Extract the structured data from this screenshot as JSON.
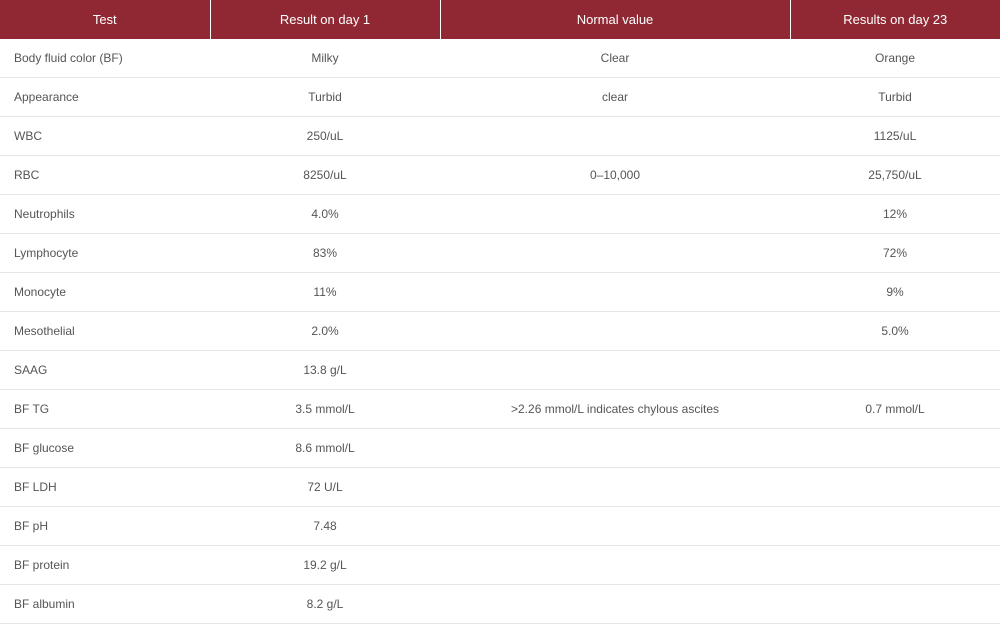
{
  "table": {
    "columns": [
      "Test",
      "Result on day 1",
      "Normal value",
      "Results on day 23"
    ],
    "rows": [
      [
        "Body fluid color (BF)",
        "Milky",
        "Clear",
        "Orange"
      ],
      [
        "Appearance",
        "Turbid",
        "clear",
        "Turbid"
      ],
      [
        "WBC",
        "250/uL",
        "",
        "1125/uL"
      ],
      [
        "RBC",
        "8250/uL",
        "0–10,000",
        "25,750/uL"
      ],
      [
        "Neutrophils",
        "4.0%",
        "",
        "12%"
      ],
      [
        "Lymphocyte",
        "83%",
        "",
        "72%"
      ],
      [
        "Monocyte",
        "11%",
        "",
        "9%"
      ],
      [
        "Mesothelial",
        "2.0%",
        "",
        "5.0%"
      ],
      [
        "SAAG",
        "13.8 g/L",
        "",
        ""
      ],
      [
        "BF TG",
        "3.5 mmol/L",
        ">2.26 mmol/L indicates chylous ascites",
        "0.7 mmol/L"
      ],
      [
        "BF glucose",
        "8.6 mmol/L",
        "",
        ""
      ],
      [
        "BF LDH",
        "72 U/L",
        "",
        ""
      ],
      [
        "BF pH",
        "7.48",
        "",
        ""
      ],
      [
        "BF protein",
        "19.2 g/L",
        "",
        ""
      ],
      [
        "BF albumin",
        "8.2 g/L",
        "",
        ""
      ]
    ],
    "header_bg": "#8f2833",
    "header_text_color": "#ffffff",
    "row_border_color": "#e6e6e6",
    "body_text_color": "#555555",
    "header_fontsize": 13,
    "body_fontsize": 12
  }
}
